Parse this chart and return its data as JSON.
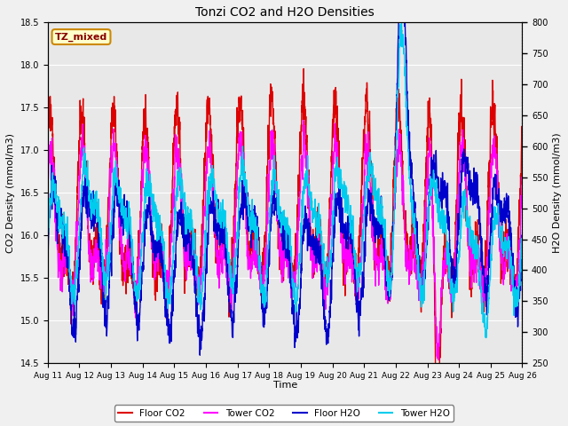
{
  "title": "Tonzi CO2 and H2O Densities",
  "xlabel": "Time",
  "ylabel_left": "CO2 Density (mmol/m3)",
  "ylabel_right": "H2O Density (mmol/m3)",
  "ylim_left": [
    14.5,
    18.5
  ],
  "ylim_right": [
    250,
    800
  ],
  "annotation_text": "TZ_mixed",
  "annotation_bg": "#ffffcc",
  "annotation_edge": "#cc8800",
  "annotation_text_color": "#880000",
  "colors": {
    "floor_co2": "#dd0000",
    "tower_co2": "#ff00ff",
    "floor_h2o": "#0000cc",
    "tower_h2o": "#00ccee"
  },
  "legend_labels": [
    "Floor CO2",
    "Tower CO2",
    "Floor H2O",
    "Tower H2O"
  ],
  "background_color": "#e8e8e8",
  "plot_bg_top": "#d8d8d8",
  "grid_color": "#ffffff",
  "linewidth": 1.0,
  "n_points": 3600,
  "n_days": 15
}
